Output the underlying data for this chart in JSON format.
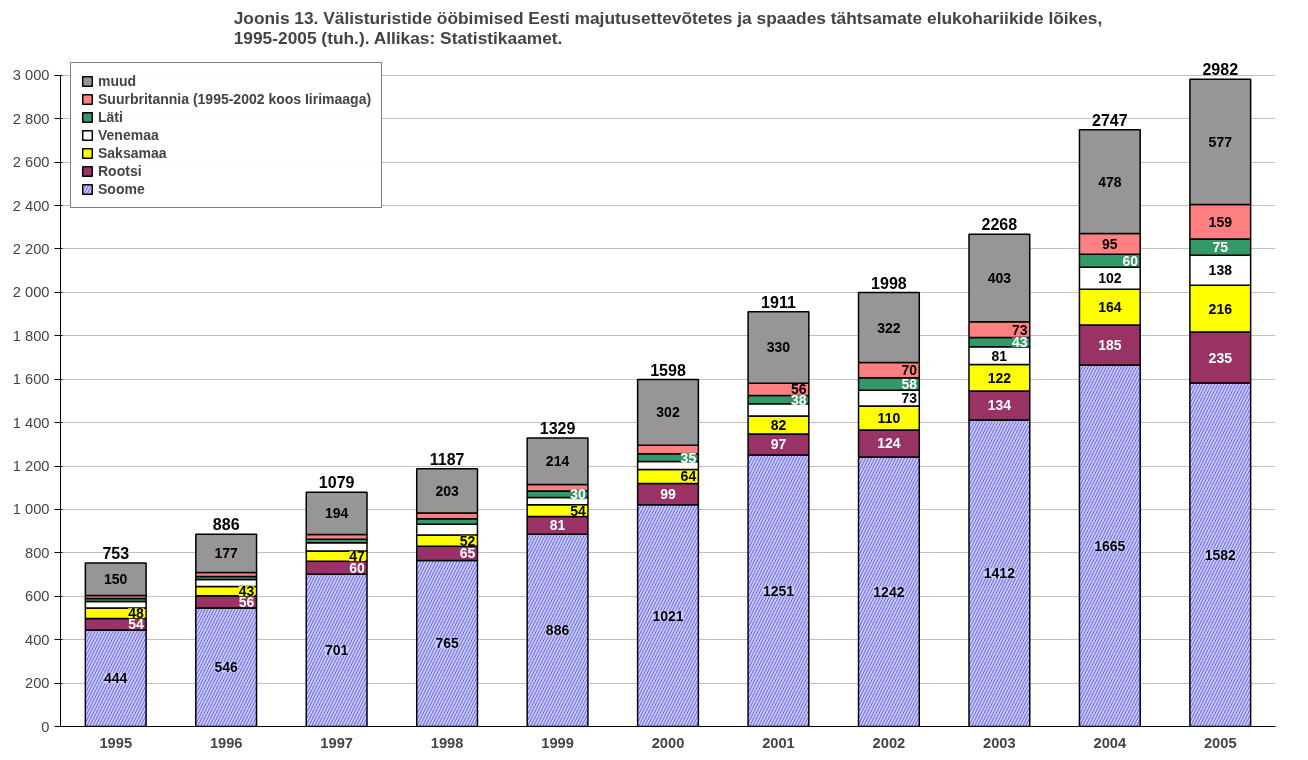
{
  "chart_data": {
    "type": "bar",
    "stacked": true,
    "title": "Joonis 13. Välisturistide ööbimised Eesti majutusettevõtetes ja spaades tähtsamate elukohariikide lõikes,\n1995-2005 (tuh.). Allikas: Statistikaamet.",
    "categories": [
      "1995",
      "1996",
      "1997",
      "1998",
      "1999",
      "2000",
      "2001",
      "2002",
      "2003",
      "2004",
      "2005"
    ],
    "ylim": [
      0,
      3000
    ],
    "yticks": [
      0,
      200,
      400,
      600,
      800,
      {
        "value": 1000,
        "label": "1 000"
      },
      {
        "value": 1200,
        "label": "1 200"
      },
      {
        "value": 1400,
        "label": "1 400"
      },
      {
        "value": 1600,
        "label": "1 600"
      },
      {
        "value": 1800,
        "label": "1 800"
      },
      {
        "value": 2000,
        "label": "2 000"
      },
      {
        "value": 2200,
        "label": "2 200"
      },
      {
        "value": 2400,
        "label": "2 400"
      },
      {
        "value": 2600,
        "label": "2 600"
      },
      {
        "value": 2800,
        "label": "2 800"
      },
      {
        "value": 3000,
        "label": "3 000"
      }
    ],
    "grid": "y",
    "legend": "top left",
    "series": [
      {
        "name": "Soome",
        "color": "#c8c8ff",
        "values": [
          444,
          546,
          701,
          765,
          886,
          1021,
          1251,
          1242,
          1412,
          1665,
          1582
        ],
        "value_labels": [
          "444",
          "546",
          "701",
          "765",
          "886",
          "1021",
          "1251",
          "1242",
          "1412",
          "1665",
          "1582"
        ]
      },
      {
        "name": "Rootsi",
        "color": "#993366",
        "values": [
          54,
          56,
          60,
          65,
          81,
          99,
          97,
          124,
          134,
          185,
          235
        ],
        "value_labels": [
          "54",
          "56",
          "60",
          "65",
          "81",
          "99",
          "97",
          "124",
          "134",
          "185",
          "235"
        ]
      },
      {
        "name": "Saksamaa",
        "color": "#ffff00",
        "values": [
          48,
          43,
          47,
          52,
          54,
          64,
          82,
          110,
          122,
          164,
          216
        ],
        "value_labels": [
          "48",
          "43",
          "47",
          "52",
          "54",
          "64",
          "82",
          "110",
          "122",
          "164",
          "216"
        ]
      },
      {
        "name": "Venemaa",
        "color": "#ffffff",
        "values": [
          30,
          32,
          38,
          50,
          34,
          37,
          57,
          73,
          81,
          102,
          138
        ],
        "value_labels": [
          null,
          null,
          null,
          null,
          null,
          null,
          null,
          "73",
          "81",
          "102",
          "138"
        ]
      },
      {
        "name": "Läti",
        "color": "#339966",
        "values": [
          14,
          14,
          17,
          25,
          30,
          35,
          38,
          58,
          43,
          60,
          75
        ],
        "value_labels": [
          null,
          null,
          null,
          null,
          "30",
          "35",
          "38",
          "58",
          "43",
          "60",
          "75"
        ]
      },
      {
        "name": "Suurbritannia (1995-2002 koos Iirimaaga)",
        "color": "#ff8080",
        "values": [
          13,
          18,
          22,
          27,
          30,
          40,
          56,
          70,
          73,
          95,
          159
        ],
        "value_labels": [
          null,
          null,
          null,
          null,
          null,
          null,
          "56",
          "70",
          "73",
          "95",
          "159"
        ]
      },
      {
        "name": "muud",
        "color": "#969696",
        "values": [
          150,
          177,
          194,
          203,
          214,
          302,
          330,
          322,
          403,
          478,
          577
        ],
        "value_labels": [
          "150",
          "177",
          "194",
          "203",
          "214",
          "302",
          "330",
          "322",
          "403",
          "478",
          "577"
        ]
      }
    ],
    "totals": [
      "753",
      "886",
      "1079",
      "1187",
      "1329",
      "1598",
      "1911",
      "1998",
      "2268",
      "2747",
      "2982"
    ]
  }
}
